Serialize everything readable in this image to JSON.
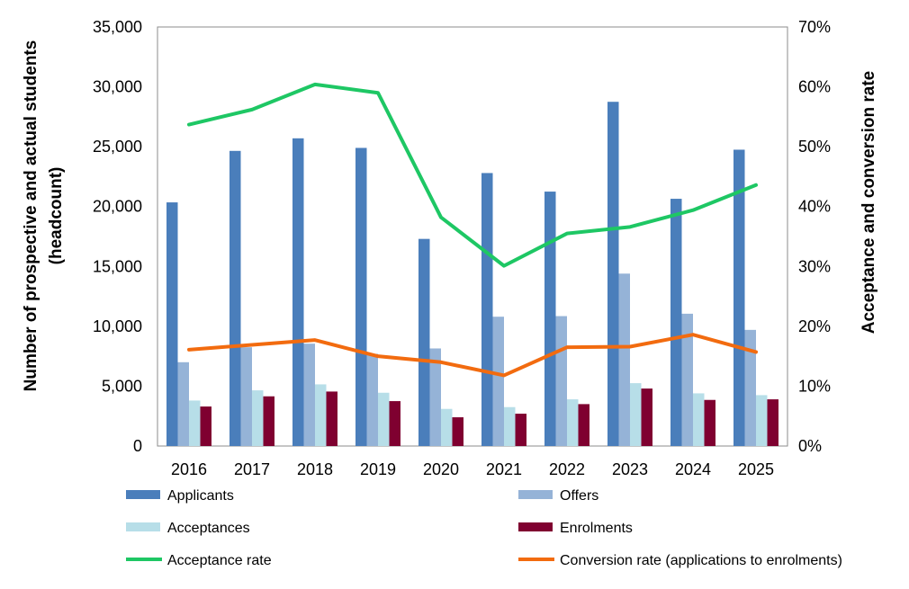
{
  "chart_data": {
    "type": "bar",
    "categories": [
      "2016",
      "2017",
      "2018",
      "2019",
      "2020",
      "2021",
      "2022",
      "2023",
      "2024",
      "2025"
    ],
    "ylabel_line1": "Number of prospective and actual students",
    "ylabel_line2": "(headcount)",
    "y2label": "Acceptance and conversion rate",
    "ylim": [
      0,
      35000
    ],
    "y2lim": [
      0,
      0.7
    ],
    "yticks": [
      "0",
      "5,000",
      "10,000",
      "15,000",
      "20,000",
      "25,000",
      "30,000",
      "35,000"
    ],
    "y2ticks": [
      "0%",
      "10%",
      "20%",
      "30%",
      "40%",
      "50%",
      "60%",
      "70%"
    ],
    "grid": false,
    "legend_position": "bottom",
    "bar_series": [
      {
        "name": "Applicants",
        "color": "#4a7ebb",
        "values": [
          20350,
          24650,
          25700,
          24900,
          17300,
          22800,
          21250,
          28750,
          20650,
          24750
        ]
      },
      {
        "name": "Offers",
        "color": "#95b3d7",
        "values": [
          7000,
          8250,
          8550,
          7700,
          8150,
          10800,
          10850,
          14400,
          11050,
          9700
        ]
      },
      {
        "name": "Acceptances",
        "color": "#b7dee8",
        "values": [
          3800,
          4650,
          5150,
          4450,
          3100,
          3250,
          3900,
          5250,
          4400,
          4250
        ]
      },
      {
        "name": "Enrolments",
        "color": "#7f0030",
        "values": [
          3300,
          4150,
          4550,
          3750,
          2400,
          2700,
          3500,
          4800,
          3850,
          3900
        ]
      }
    ],
    "line_series": [
      {
        "name": "Acceptance rate",
        "color": "#1ec764",
        "values": [
          0.537,
          0.562,
          0.604,
          0.59,
          0.382,
          0.301,
          0.355,
          0.366,
          0.394,
          0.436
        ]
      },
      {
        "name": "Conversion rate (applications to enrolments)",
        "color": "#f26b0f",
        "values": [
          0.161,
          0.169,
          0.177,
          0.15,
          0.14,
          0.118,
          0.165,
          0.166,
          0.186,
          0.157
        ]
      }
    ]
  }
}
